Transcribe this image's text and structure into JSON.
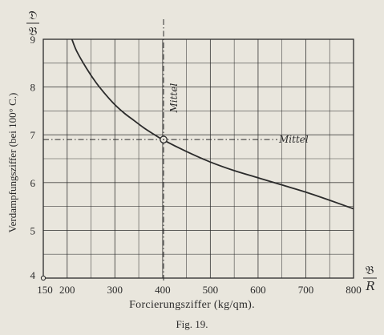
{
  "chart_data": {
    "type": "line",
    "figure_caption": "Fig. 19.",
    "xlabel": "Forcierungsziffer (kg/qm).",
    "ylabel": "Verdampfungsziffer (bei 100° C.)",
    "x_axis_symbol": {
      "numerator": "𝔅",
      "denominator": "R"
    },
    "y_axis_symbol": {
      "numerator": "𝔇",
      "denominator": "𝔅"
    },
    "xlim": [
      150,
      800
    ],
    "ylim": [
      4,
      9
    ],
    "x_ticks": [
      150,
      200,
      300,
      400,
      500,
      600,
      700,
      800
    ],
    "x_tick_labels": [
      "150",
      "200",
      "300",
      "400",
      "500",
      "600",
      "700",
      "800"
    ],
    "y_ticks": [
      4,
      5,
      6,
      7,
      8,
      9
    ],
    "y_tick_labels": [
      "4",
      "5",
      "6",
      "7",
      "8",
      "9"
    ],
    "grid": true,
    "series": [
      {
        "x": [
          210,
          220,
          240,
          260,
          280,
          300,
          320,
          340,
          360,
          380,
          400,
          450,
          500,
          550,
          600,
          650,
          700,
          750,
          800
        ],
        "y": [
          9.0,
          8.75,
          8.4,
          8.1,
          7.85,
          7.63,
          7.45,
          7.3,
          7.15,
          7.02,
          6.9,
          6.65,
          6.43,
          6.25,
          6.1,
          5.95,
          5.8,
          5.63,
          5.45
        ]
      }
    ],
    "mean_point": {
      "x": 402,
      "y": 6.9
    },
    "annotations": [
      {
        "text": "Mittel",
        "orientation": "vertical",
        "x": 402
      },
      {
        "text": "Mittel",
        "orientation": "horizontal",
        "y": 6.9
      }
    ]
  }
}
